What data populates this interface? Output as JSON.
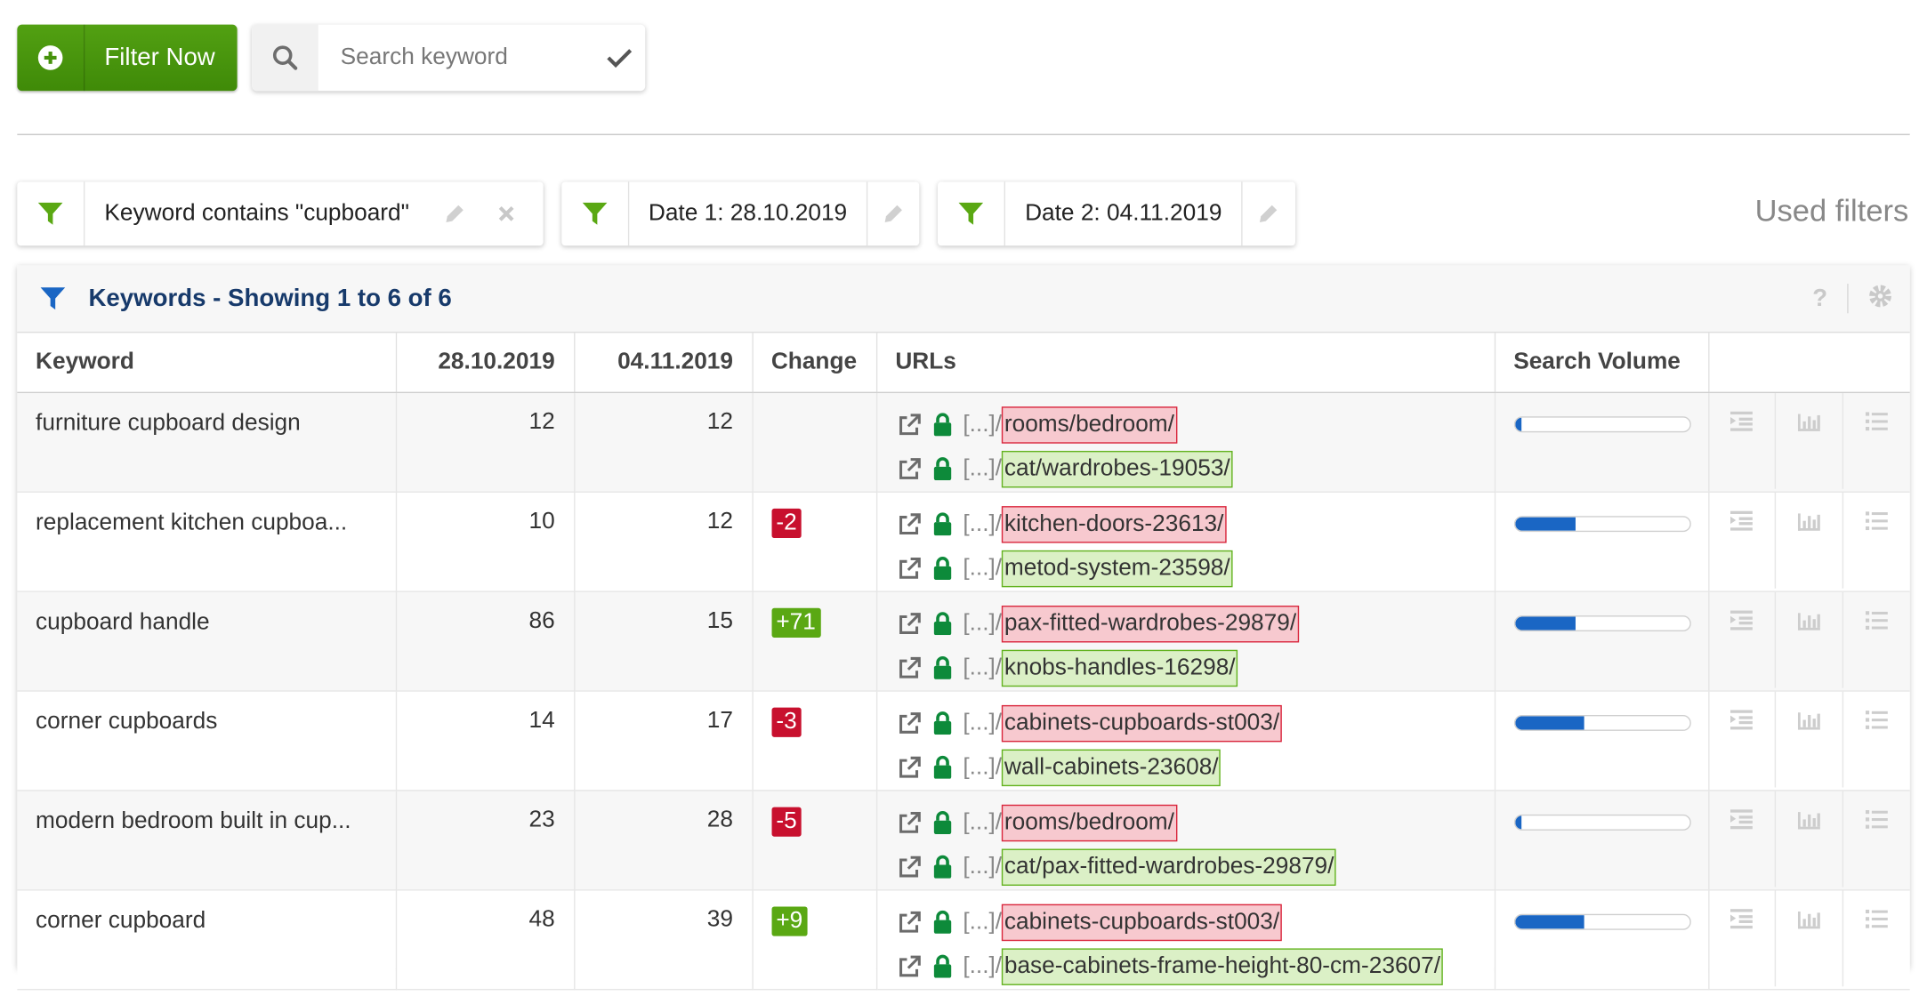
{
  "toolbar": {
    "filter_button_label": "Filter Now",
    "search_placeholder": "Search keyword"
  },
  "filters": {
    "chips": [
      {
        "label": "Keyword contains \"cupboard\""
      },
      {
        "label": "Date 1: 28.10.2019"
      },
      {
        "label": "Date 2: 04.11.2019"
      }
    ],
    "used_filters_label": "Used filters"
  },
  "panel": {
    "title": "Keywords - Showing 1 to 6 of 6",
    "help_label": "?"
  },
  "table": {
    "columns": {
      "keyword": "Keyword",
      "date1": "28.10.2019",
      "date2": "04.11.2019",
      "change": "Change",
      "urls": "URLs",
      "search_volume": "Search Volume"
    },
    "url_prefix": "[...]/",
    "rows": [
      {
        "keyword": "furniture cupboard design",
        "date1": "12",
        "date2": "12",
        "change": "",
        "url_lost": "rooms/bedroom/",
        "url_new": "cat/wardrobes-19053/",
        "search_volume_level": 0.04
      },
      {
        "keyword": "replacement kitchen cupboa...",
        "date1": "10",
        "date2": "12",
        "change": "-2",
        "url_lost": "kitchen-doors-23613/",
        "url_new": "metod-system-23598/",
        "search_volume_level": 0.35
      },
      {
        "keyword": "cupboard handle",
        "date1": "86",
        "date2": "15",
        "change": "+71",
        "url_lost": "pax-fitted-wardrobes-29879/",
        "url_new": "knobs-handles-16298/",
        "search_volume_level": 0.35
      },
      {
        "keyword": "corner cupboards",
        "date1": "14",
        "date2": "17",
        "change": "-3",
        "url_lost": "cabinets-cupboards-st003/",
        "url_new": "wall-cabinets-23608/",
        "search_volume_level": 0.4
      },
      {
        "keyword": "modern bedroom built in cup...",
        "date1": "23",
        "date2": "28",
        "change": "-5",
        "url_lost": "rooms/bedroom/",
        "url_new": "cat/pax-fitted-wardrobes-29879/",
        "search_volume_level": 0.04
      },
      {
        "keyword": "corner cupboard",
        "date1": "48",
        "date2": "39",
        "change": "+9",
        "url_lost": "cabinets-cupboards-st003/",
        "url_new": "base-cabinets-frame-height-80-cm-23607/",
        "search_volume_level": 0.4
      }
    ]
  },
  "colors": {
    "brand_green": "#46920c",
    "filter_green": "#5aa813",
    "title_blue": "#173a6b",
    "bar_blue": "#1a66c4",
    "negative_red": "#c8102e",
    "positive_green": "#5aa813"
  },
  "icons": {
    "filter_button": "plus-circle-icon",
    "search": "search-icon",
    "confirm": "check-icon",
    "chip_filter": "funnel-icon",
    "edit": "pencil-icon",
    "remove": "close-icon",
    "panel_filter": "funnel-icon",
    "settings": "gear-icon",
    "open_url": "external-link-icon",
    "secure": "lock-icon",
    "row_actions": [
      "indent-list-icon",
      "bar-chart-icon",
      "list-icon"
    ]
  }
}
